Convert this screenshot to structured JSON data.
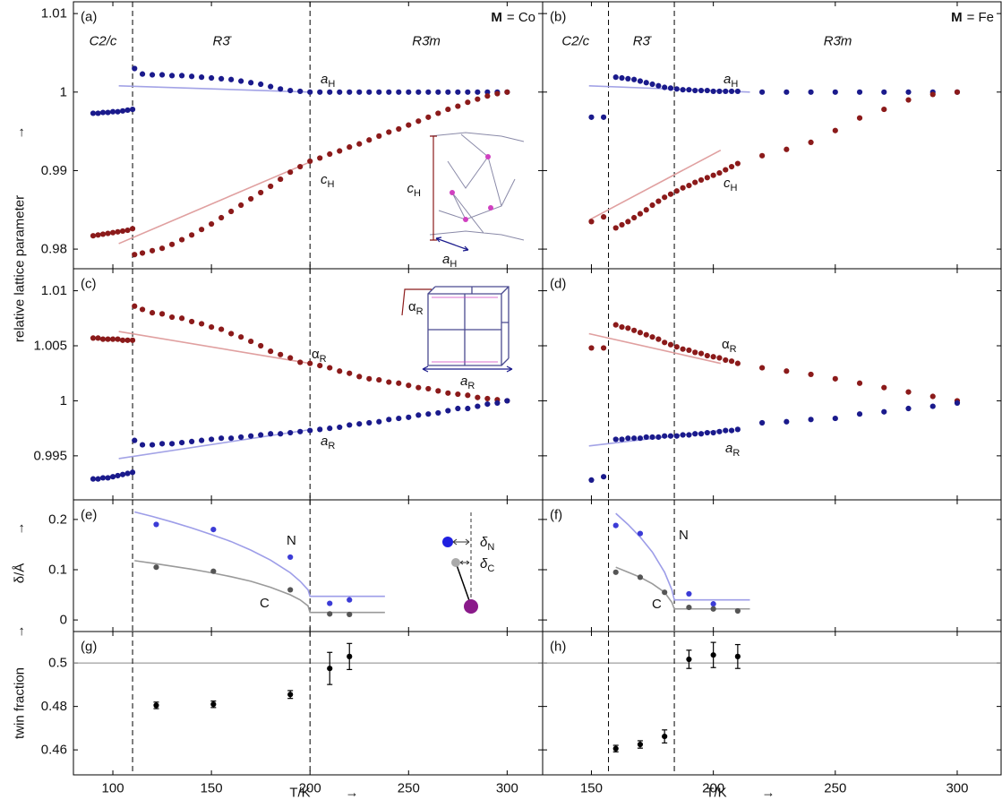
{
  "chart_data": [
    {
      "type": "scatter",
      "panel": "(a)",
      "title": {
        "symbol": "M",
        "text": "= Co"
      },
      "ylabel": "relative lattice parameter",
      "ylabel_arrow": "→",
      "phases": [
        "C2/c",
        "R3̄",
        "R3̄m"
      ],
      "xlim": [
        80,
        318
      ],
      "ylim": [
        0.9775,
        1.0115
      ],
      "xticks": [
        100,
        150,
        200,
        250,
        300
      ],
      "yticks": [
        0.98,
        0.99,
        1,
        1.01
      ],
      "vlines": [
        110,
        200
      ],
      "x": [
        90,
        92.5,
        95,
        97.5,
        100,
        102.5,
        105,
        107.5,
        110,
        111,
        115,
        120,
        125,
        130,
        135,
        140,
        145,
        150,
        155,
        160,
        165,
        170,
        175,
        180,
        185,
        190,
        195,
        200,
        205,
        210,
        215,
        220,
        225,
        230,
        235,
        240,
        245,
        250,
        255,
        260,
        265,
        270,
        275,
        280,
        285,
        290,
        295,
        300
      ],
      "series": [
        {
          "name": "a",
          "sub": "H",
          "color": "#1a1a8c",
          "values": [
            0.9973,
            0.9973,
            0.9974,
            0.9974,
            0.9975,
            0.9975,
            0.9976,
            0.9977,
            0.9978,
            1.003,
            1.0023,
            1.0022,
            1.0022,
            1.0021,
            1.0021,
            1.002,
            1.0019,
            1.0018,
            1.0017,
            1.0016,
            1.0014,
            1.0012,
            1.001,
            1.0007,
            1.0004,
            1.0002,
            1.0001,
            1,
            1,
            1,
            1,
            1,
            1,
            1,
            1,
            1,
            1,
            1,
            1,
            1,
            1,
            1,
            1,
            1,
            1,
            1,
            1,
            1
          ]
        },
        {
          "name": "c",
          "sub": "H",
          "color": "#8b1a1a",
          "values": [
            0.9817,
            0.9818,
            0.9819,
            0.982,
            0.9821,
            0.9822,
            0.9823,
            0.9824,
            0.9826,
            0.9793,
            0.9795,
            0.9798,
            0.9801,
            0.9806,
            0.9812,
            0.9818,
            0.9825,
            0.9832,
            0.984,
            0.9848,
            0.9856,
            0.9864,
            0.9872,
            0.988,
            0.9889,
            0.9898,
            0.9905,
            0.9912,
            0.9916,
            0.9921,
            0.9925,
            0.993,
            0.9934,
            0.9939,
            0.9944,
            0.9949,
            0.9953,
            0.9958,
            0.9963,
            0.9968,
            0.9973,
            0.9978,
            0.9982,
            0.9987,
            0.9991,
            0.9995,
            0.9998,
            1
          ]
        }
      ],
      "fits": [
        {
          "color": "#a3a3e6",
          "x": [
            103,
            200
          ],
          "values": [
            1.0008,
            1
          ]
        },
        {
          "color": "#e0a0a0",
          "x": [
            103,
            200
          ],
          "values": [
            0.9807,
            0.9911
          ]
        }
      ],
      "inset": [
        {
          "text": "c",
          "sub": "H"
        },
        {
          "text": "a",
          "sub": "H"
        }
      ]
    },
    {
      "type": "scatter",
      "panel": "(b)",
      "title": {
        "symbol": "M",
        "text": "= Fe"
      },
      "phases": [
        "C2/c",
        "R3̄",
        "R3̄m"
      ],
      "xlim": [
        130,
        318
      ],
      "ylim": [
        0.9775,
        1.0115
      ],
      "xticks": [
        150,
        200,
        250,
        300
      ],
      "yticks": [
        0.98,
        0.99,
        1,
        1.01
      ],
      "vlines": [
        157,
        184
      ],
      "x": [
        150,
        155,
        160,
        162.5,
        165,
        167.5,
        170,
        172.5,
        175,
        177.5,
        180,
        182.5,
        185,
        187.5,
        190,
        192.5,
        195,
        197.5,
        200,
        202.5,
        205,
        207.5,
        210,
        220,
        230,
        240,
        250,
        260,
        270,
        280,
        290,
        300
      ],
      "series": [
        {
          "name": "a",
          "sub": "H",
          "color": "#1a1a8c",
          "values": [
            0.9968,
            0.9968,
            1.0019,
            1.0018,
            1.0017,
            1.0016,
            1.0014,
            1.0012,
            1.001,
            1.0008,
            1.0006,
            1.0005,
            1.0004,
            1.0003,
            1.0003,
            1.0002,
            1.0002,
            1.0002,
            1.0001,
            1.0001,
            1.0001,
            1.0001,
            1.0001,
            1,
            1,
            1,
            1,
            1,
            1,
            1,
            1,
            1
          ]
        },
        {
          "name": "c",
          "sub": "H",
          "color": "#8b1a1a",
          "values": [
            0.9835,
            0.9841,
            0.9827,
            0.9831,
            0.9835,
            0.984,
            0.9845,
            0.985,
            0.9856,
            0.9861,
            0.9866,
            0.987,
            0.9874,
            0.9878,
            0.9881,
            0.9885,
            0.9888,
            0.9891,
            0.9894,
            0.9897,
            0.9901,
            0.9905,
            0.9909,
            0.9919,
            0.9927,
            0.9936,
            0.9951,
            0.9967,
            0.9978,
            0.999,
            0.9997,
            1
          ]
        }
      ],
      "fits": [
        {
          "color": "#a3a3e6",
          "x": [
            149,
            215
          ],
          "values": [
            1.0008,
            1
          ]
        },
        {
          "color": "#e0a0a0",
          "x": [
            149,
            203
          ],
          "values": [
            0.9837,
            0.9926
          ]
        }
      ]
    },
    {
      "type": "scatter",
      "panel": "(c)",
      "xlim": [
        80,
        318
      ],
      "ylim": [
        0.991,
        1.012
      ],
      "xticks": [
        100,
        150,
        200,
        250,
        300
      ],
      "yticks": [
        0.995,
        1,
        1.005,
        1.01
      ],
      "vlines": [
        110,
        200
      ],
      "x": [
        90,
        92.5,
        95,
        97.5,
        100,
        102.5,
        105,
        107.5,
        110,
        111,
        115,
        120,
        125,
        130,
        135,
        140,
        145,
        150,
        155,
        160,
        165,
        170,
        175,
        180,
        185,
        190,
        195,
        200,
        205,
        210,
        215,
        220,
        225,
        230,
        235,
        240,
        245,
        250,
        255,
        260,
        265,
        270,
        275,
        280,
        285,
        290,
        295,
        300
      ],
      "series": [
        {
          "name": "α",
          "sub": "R",
          "color": "#8b1a1a",
          "values": [
            1.0057,
            1.0057,
            1.0056,
            1.0056,
            1.0056,
            1.0056,
            1.0055,
            1.0055,
            1.0055,
            1.0086,
            1.0083,
            1.008,
            1.0079,
            1.0076,
            1.0075,
            1.0072,
            1.007,
            1.0067,
            1.0065,
            1.0061,
            1.0058,
            1.0054,
            1.005,
            1.0045,
            1.0042,
            1.0039,
            1.0035,
            1.0034,
            1.0032,
            1.003,
            1.0027,
            1.0025,
            1.0022,
            1.002,
            1.0019,
            1.0017,
            1.0016,
            1.0014,
            1.0012,
            1.0011,
            1.0009,
            1.0007,
            1.0006,
            1.0005,
            1.0003,
            1.0002,
            1.0001,
            1
          ]
        },
        {
          "name": "a",
          "sub": "R",
          "color": "#1a1a8c",
          "values": [
            0.9929,
            0.9929,
            0.993,
            0.993,
            0.9931,
            0.9932,
            0.9933,
            0.9934,
            0.9935,
            0.9964,
            0.996,
            0.996,
            0.9961,
            0.9961,
            0.9962,
            0.9963,
            0.9964,
            0.9965,
            0.9966,
            0.9966,
            0.9967,
            0.9968,
            0.9969,
            0.997,
            0.997,
            0.9971,
            0.9972,
            0.9973,
            0.9974,
            0.9975,
            0.9976,
            0.9978,
            0.9979,
            0.998,
            0.9981,
            0.9983,
            0.9984,
            0.9985,
            0.9987,
            0.9988,
            0.9989,
            0.9991,
            0.9993,
            0.9993,
            0.9995,
            0.9997,
            0.9998,
            1
          ]
        }
      ],
      "fits": [
        {
          "color": "#e0a0a0",
          "x": [
            103,
            200
          ],
          "values": [
            1.0063,
            1.0034
          ]
        },
        {
          "color": "#a3a3e6",
          "x": [
            103,
            200
          ],
          "values": [
            0.99475,
            0.99738
          ]
        }
      ],
      "inset": [
        {
          "text": "α",
          "sub": "R"
        },
        {
          "text": "a",
          "sub": "R"
        }
      ]
    },
    {
      "type": "scatter",
      "panel": "(d)",
      "xlim": [
        130,
        318
      ],
      "ylim": [
        0.991,
        1.012
      ],
      "xticks": [
        150,
        200,
        250,
        300
      ],
      "yticks": [
        0.995,
        1,
        1.005,
        1.01
      ],
      "vlines": [
        157,
        184
      ],
      "x": [
        150,
        155,
        160,
        162.5,
        165,
        167.5,
        170,
        172.5,
        175,
        177.5,
        180,
        182.5,
        185,
        187.5,
        190,
        192.5,
        195,
        197.5,
        200,
        202.5,
        205,
        207.5,
        210,
        220,
        230,
        240,
        250,
        260,
        270,
        280,
        290,
        300
      ],
      "series": [
        {
          "name": "α",
          "sub": "R",
          "color": "#8b1a1a",
          "values": [
            1.0048,
            1.0048,
            1.0069,
            1.0067,
            1.0066,
            1.0064,
            1.0062,
            1.006,
            1.0058,
            1.0056,
            1.0053,
            1.0051,
            1.0049,
            1.0047,
            1.0046,
            1.0044,
            1.0043,
            1.0041,
            1.004,
            1.0039,
            1.0037,
            1.0036,
            1.0034,
            1.003,
            1.0027,
            1.0024,
            1.002,
            1.0016,
            1.0012,
            1.0008,
            1.0004,
            1
          ]
        },
        {
          "name": "a",
          "sub": "R",
          "color": "#1a1a8c",
          "values": [
            0.9928,
            0.9931,
            0.9965,
            0.9965,
            0.9966,
            0.9966,
            0.9966,
            0.9967,
            0.9967,
            0.9967,
            0.9968,
            0.9968,
            0.9968,
            0.9969,
            0.9969,
            0.997,
            0.997,
            0.9971,
            0.9971,
            0.9972,
            0.9973,
            0.9973,
            0.9974,
            0.998,
            0.9981,
            0.9983,
            0.9984,
            0.9988,
            0.999,
            0.9993,
            0.9995,
            0.9998
          ]
        }
      ],
      "fits": [
        {
          "color": "#e0a0a0",
          "x": [
            149,
            203
          ],
          "values": [
            1.0061,
            1.0034
          ]
        },
        {
          "color": "#a3a3e6",
          "x": [
            149,
            203
          ],
          "values": [
            0.9959,
            0.9973
          ]
        }
      ]
    },
    {
      "type": "scatter",
      "panel": "(e)",
      "ylabel": "δ/Å",
      "ylabel_arrow": "→",
      "xlim": [
        80,
        318
      ],
      "ylim": [
        -0.023,
        0.239
      ],
      "xticks": [
        100,
        150,
        200,
        250,
        300
      ],
      "yticks": [
        0,
        0.1,
        0.2
      ],
      "vlines": [
        110,
        200
      ],
      "series": [
        {
          "name": "N",
          "color": "#3b3bd6",
          "x": [
            122,
            151,
            190,
            210,
            220
          ],
          "values": [
            0.19,
            0.18,
            0.125,
            0.033,
            0.04
          ]
        },
        {
          "name": "C",
          "color": "#555555",
          "x": [
            122,
            151,
            190,
            210,
            220
          ],
          "values": [
            0.105,
            0.097,
            0.06,
            0.012,
            0.011
          ]
        }
      ],
      "fits": [
        {
          "color": "#9d9de8",
          "x": [
            111,
            120,
            130,
            140,
            150,
            160,
            170,
            180,
            190,
            195,
            199,
            200,
            238
          ],
          "values": [
            0.215,
            0.206,
            0.195,
            0.183,
            0.17,
            0.156,
            0.139,
            0.119,
            0.094,
            0.077,
            0.06,
            0.047,
            0.047
          ]
        },
        {
          "color": "#9a9a9a",
          "x": [
            111,
            120,
            130,
            140,
            150,
            160,
            170,
            180,
            190,
            195,
            199,
            200,
            238
          ],
          "values": [
            0.118,
            0.113,
            0.107,
            0.101,
            0.094,
            0.086,
            0.077,
            0.065,
            0.05,
            0.04,
            0.028,
            0.015,
            0.015
          ]
        }
      ],
      "inset": [
        {
          "text": "δ",
          "sub": "N"
        },
        {
          "text": "δ",
          "sub": "C"
        }
      ]
    },
    {
      "type": "scatter",
      "panel": "(f)",
      "xlim": [
        130,
        318
      ],
      "ylim": [
        -0.023,
        0.239
      ],
      "xticks": [
        150,
        200,
        250,
        300
      ],
      "yticks": [
        0,
        0.1,
        0.2
      ],
      "vlines": [
        157,
        184
      ],
      "series": [
        {
          "name": "N",
          "color": "#3b3bd6",
          "x": [
            160,
            170,
            190,
            200
          ],
          "values": [
            0.188,
            0.172,
            0.052,
            0.032
          ]
        },
        {
          "name": "C",
          "color": "#555555",
          "x": [
            160,
            170,
            180,
            190,
            200,
            210
          ],
          "values": [
            0.095,
            0.085,
            0.055,
            0.025,
            0.022,
            0.018
          ]
        }
      ],
      "fits": [
        {
          "color": "#9d9de8",
          "x": [
            160,
            165,
            170,
            175,
            180,
            183,
            184,
            215
          ],
          "values": [
            0.212,
            0.19,
            0.165,
            0.135,
            0.095,
            0.06,
            0.04,
            0.04
          ]
        },
        {
          "color": "#9a9a9a",
          "x": [
            160,
            165,
            170,
            175,
            180,
            183,
            184,
            215
          ],
          "values": [
            0.105,
            0.095,
            0.085,
            0.072,
            0.055,
            0.035,
            0.022,
            0.022
          ]
        }
      ]
    },
    {
      "type": "scatter",
      "panel": "(g)",
      "ylabel": "twin fraction",
      "ylabel_arrow": "→",
      "xlabel": "T/K",
      "xlabel_arrow": "→",
      "xlim": [
        80,
        318
      ],
      "ylim": [
        0.4485,
        0.5145
      ],
      "xticks": [
        100,
        150,
        200,
        250,
        300
      ],
      "yticks": [
        0.46,
        0.48,
        0.5
      ],
      "vlines": [
        110,
        200
      ],
      "hline": 0.5,
      "series": [
        {
          "color": "#000000",
          "x": [
            122,
            151,
            190,
            210,
            220
          ],
          "values": [
            0.4805,
            0.481,
            0.4855,
            0.4975,
            0.503
          ],
          "errors": [
            0.0015,
            0.0015,
            0.0018,
            0.0074,
            0.006
          ]
        }
      ]
    },
    {
      "type": "scatter",
      "panel": "(h)",
      "xlabel": "T/K",
      "xlabel_arrow": "→",
      "xlim": [
        130,
        318
      ],
      "ylim": [
        0.4485,
        0.5145
      ],
      "xticks": [
        150,
        200,
        250,
        300
      ],
      "yticks": [
        0.46,
        0.48,
        0.5
      ],
      "vlines": [
        157,
        184
      ],
      "hline": 0.5,
      "series": [
        {
          "color": "#000000",
          "x": [
            160,
            170,
            180,
            190,
            200,
            210
          ],
          "values": [
            0.4606,
            0.4625,
            0.4662,
            0.5017,
            0.5037,
            0.503
          ],
          "errors": [
            0.0015,
            0.0017,
            0.003,
            0.0042,
            0.0058,
            0.0055
          ]
        }
      ]
    }
  ]
}
